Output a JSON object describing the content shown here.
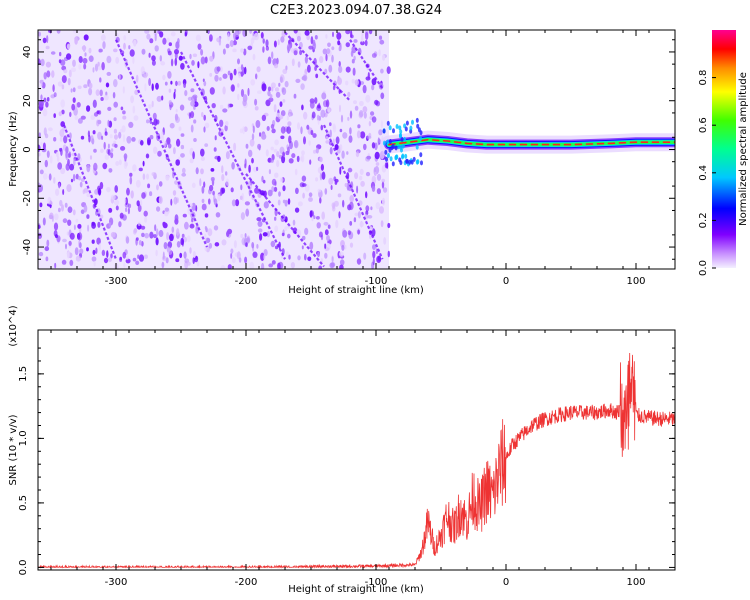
{
  "title": "C2E3.2023.094.07.38.G24",
  "chart_data": [
    {
      "type": "heatmap",
      "xlabel": "Height of straight line (km)",
      "ylabel": "Frequency (Hz)",
      "xlim": [
        -360,
        130
      ],
      "ylim": [
        -49,
        49
      ],
      "xticks": [
        -300,
        -200,
        -100,
        0,
        100
      ],
      "yticks": [
        -40,
        -20,
        0,
        20,
        40
      ],
      "ridge": {
        "x": [
          -90,
          -75,
          -60,
          -45,
          -30,
          -15,
          0,
          20,
          50,
          80,
          100,
          130
        ],
        "y": [
          2,
          3,
          4,
          3.5,
          2.5,
          2,
          2,
          2,
          2,
          2.5,
          3,
          3
        ]
      },
      "noise_region": [
        -360,
        -90
      ],
      "colorbar": {
        "label": "Normalized spectral amplitude",
        "range": [
          0.0,
          1.0
        ],
        "ticks": [
          0.0,
          0.2,
          0.4,
          0.6,
          0.8
        ],
        "colors": [
          "#f0f0f0",
          "#e7c8ff",
          "#8a00ff",
          "#0000ff",
          "#00bfff",
          "#00ff40",
          "#ffff00",
          "#ff8000",
          "#ff0000",
          "#ff0080"
        ]
      }
    },
    {
      "type": "line",
      "xlabel": "Height of straight line (km)",
      "ylabel": "SNR (10 * v/v)",
      "y_multiplier": "(x10^4)",
      "xlim": [
        -360,
        130
      ],
      "ylim": [
        -0.02,
        1.84
      ],
      "xticks": [
        -300,
        -200,
        -100,
        0,
        100
      ],
      "yticks": [
        0.0,
        0.5,
        1.0,
        1.5
      ],
      "ytick_labels": [
        "0.0",
        "0.5",
        "1.0",
        "1.5"
      ],
      "series": [
        {
          "color": "#ee3333",
          "x": [
            -360,
            -300,
            -200,
            -100,
            -70,
            -65,
            -60,
            -55,
            -50,
            -45,
            -40,
            -35,
            -30,
            -25,
            -20,
            -15,
            -10,
            -5,
            0,
            5,
            10,
            20,
            30,
            40,
            50,
            60,
            70,
            80,
            85,
            90,
            93,
            95,
            97,
            100,
            110,
            120,
            130
          ],
          "y": [
            0.0,
            0.0,
            0.0,
            0.01,
            0.02,
            0.12,
            0.35,
            0.15,
            0.25,
            0.4,
            0.3,
            0.45,
            0.35,
            0.55,
            0.45,
            0.6,
            0.55,
            0.75,
            0.85,
            0.95,
            1.0,
            1.1,
            1.15,
            1.18,
            1.2,
            1.2,
            1.2,
            1.22,
            1.2,
            1.25,
            1.0,
            1.35,
            1.2,
            1.18,
            1.16,
            1.15,
            1.15
          ]
        }
      ]
    }
  ]
}
